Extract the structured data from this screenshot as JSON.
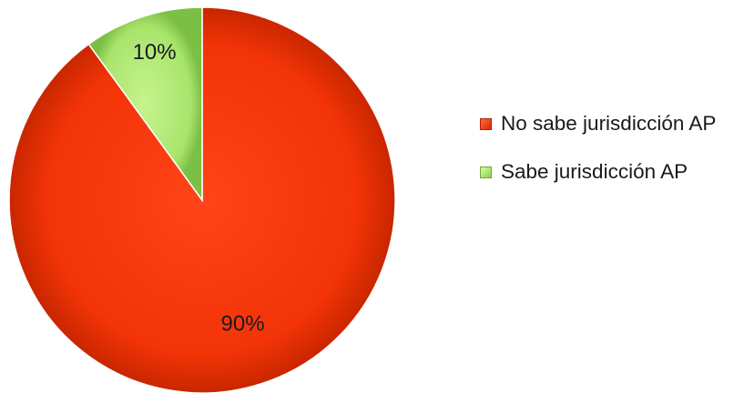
{
  "chart_data": {
    "type": "pie",
    "categories": [
      "No sabe jurisdicción AP",
      "Sabe jurisdicción AP"
    ],
    "values": [
      90,
      10
    ],
    "data_labels": [
      "90%",
      "10%"
    ],
    "colors": [
      "#f03008",
      "#a2e064"
    ],
    "title": "",
    "legend_position": "right"
  }
}
